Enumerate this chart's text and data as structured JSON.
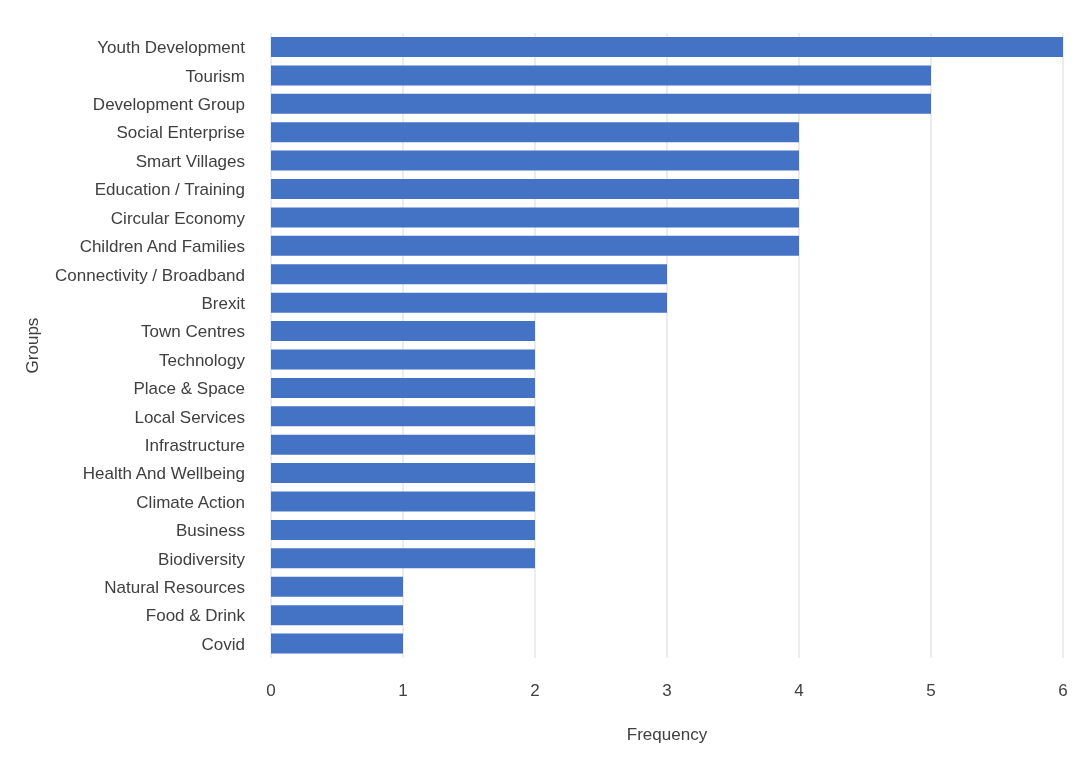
{
  "chart_data": {
    "type": "bar",
    "orientation": "horizontal",
    "xlabel": "Frequency",
    "ylabel": "Groups",
    "categories": [
      "Youth Development",
      "Tourism",
      "Development Group",
      "Social Enterprise",
      "Smart Villages",
      "Education / Training",
      "Circular Economy",
      "Children And Families",
      "Connectivity / Broadband",
      "Brexit",
      "Town Centres",
      "Technology",
      "Place & Space",
      "Local Services",
      "Infrastructure",
      "Health And Wellbeing",
      "Climate Action",
      "Business",
      "Biodiversity",
      "Natural Resources",
      "Food & Drink",
      "Covid"
    ],
    "values": [
      6,
      5,
      5,
      4,
      4,
      4,
      4,
      4,
      3,
      3,
      2,
      2,
      2,
      2,
      2,
      2,
      2,
      2,
      2,
      1,
      1,
      1
    ],
    "color": "#4472c4",
    "xlim": [
      0,
      6
    ],
    "xticks": [
      0,
      1,
      2,
      3,
      4,
      5,
      6
    ],
    "grid": "x"
  }
}
